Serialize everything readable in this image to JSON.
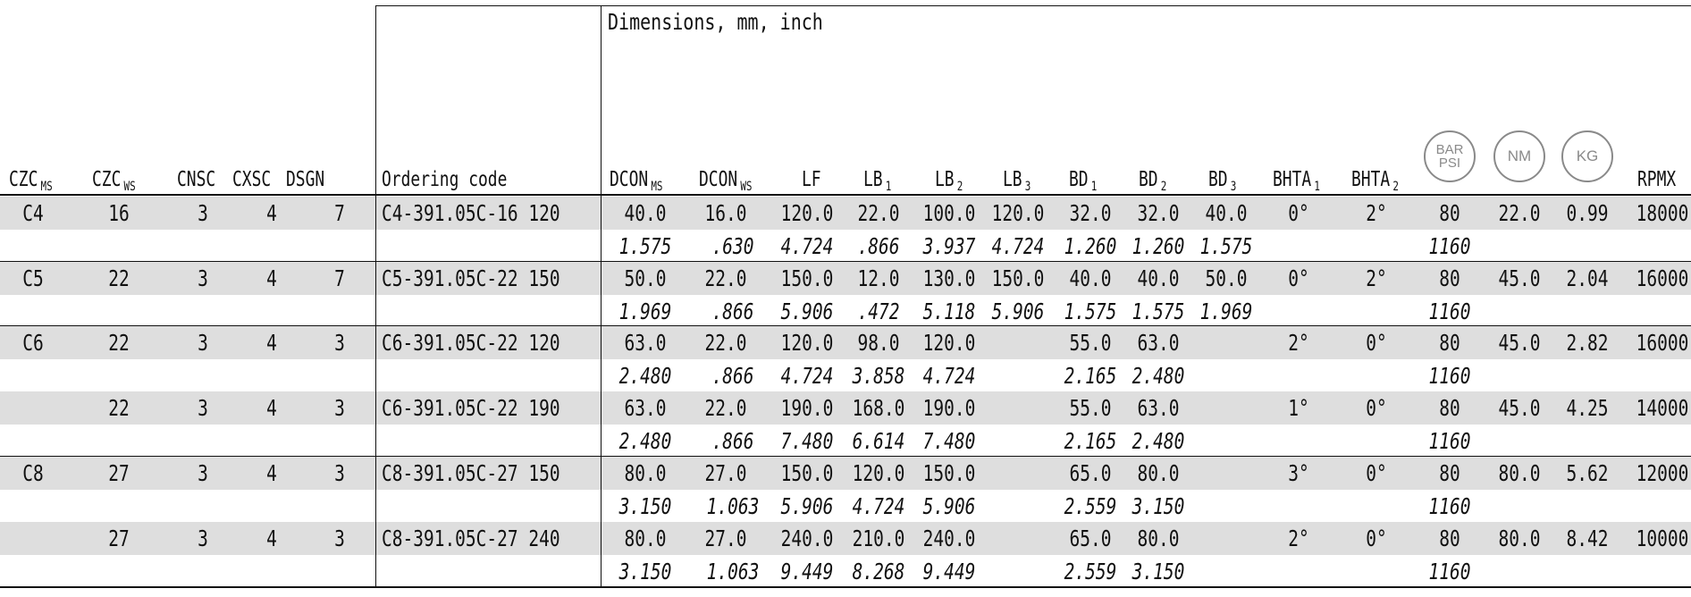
{
  "dimensions_title": "Dimensions, mm, inch",
  "headers": {
    "czc_ms": "CZC",
    "czc_ms_sub": "MS",
    "czc_ws": "CZC",
    "czc_ws_sub": "WS",
    "cnsc": "CNSC",
    "cxsc": "CXSC",
    "dsgn": "DSGN",
    "ordering_code": "Ordering code",
    "dcon_ms": "DCON",
    "dcon_ms_sub": "MS",
    "dcon_ws": "DCON",
    "dcon_ws_sub": "WS",
    "lf": "LF",
    "lb1": "LB",
    "lb1_sub": "1",
    "lb2": "LB",
    "lb2_sub": "2",
    "lb3": "LB",
    "lb3_sub": "3",
    "bd1": "BD",
    "bd1_sub": "1",
    "bd2": "BD",
    "bd2_sub": "2",
    "bd3": "BD",
    "bd3_sub": "3",
    "bhta1": "BHTA",
    "bhta1_sub": "1",
    "bhta2": "BHTA",
    "bhta2_sub": "2",
    "rpmx": "RPMX"
  },
  "badges": {
    "pressure_top": "BAR",
    "pressure_bottom": "PSI",
    "torque": "NM",
    "weight": "KG"
  },
  "rows": [
    {
      "czc_ms": "C4",
      "czc_ws": "16",
      "cnsc": "3",
      "cxsc": "4",
      "dsgn": "7",
      "code": "C4-391.05C-16 120",
      "dcon_ms": "40.0",
      "dcon_ws": "16.0",
      "lf": "120.0",
      "lb1": "22.0",
      "lb2": "100.0",
      "lb3": "120.0",
      "bd1": "32.0",
      "bd2": "32.0",
      "bd3": "40.0",
      "bhta1": "0°",
      "bhta2": "2°",
      "bar": "80",
      "nm": "22.0",
      "kg": "0.99",
      "rpmx": "18000",
      "in_dcon_ms": "1.575",
      "in_dcon_ws": ".630",
      "in_lf": "4.724",
      "in_lb1": ".866",
      "in_lb2": "3.937",
      "in_lb3": "4.724",
      "in_bd1": "1.260",
      "in_bd2": "1.260",
      "in_bd3": "1.575",
      "psi": "1160"
    },
    {
      "czc_ms": "C5",
      "czc_ws": "22",
      "cnsc": "3",
      "cxsc": "4",
      "dsgn": "7",
      "code": "C5-391.05C-22 150",
      "dcon_ms": "50.0",
      "dcon_ws": "22.0",
      "lf": "150.0",
      "lb1": "12.0",
      "lb2": "130.0",
      "lb3": "150.0",
      "bd1": "40.0",
      "bd2": "40.0",
      "bd3": "50.0",
      "bhta1": "0°",
      "bhta2": "2°",
      "bar": "80",
      "nm": "45.0",
      "kg": "2.04",
      "rpmx": "16000",
      "in_dcon_ms": "1.969",
      "in_dcon_ws": ".866",
      "in_lf": "5.906",
      "in_lb1": ".472",
      "in_lb2": "5.118",
      "in_lb3": "5.906",
      "in_bd1": "1.575",
      "in_bd2": "1.575",
      "in_bd3": "1.969",
      "psi": "1160"
    },
    {
      "czc_ms": "C6",
      "czc_ws": "22",
      "cnsc": "3",
      "cxsc": "4",
      "dsgn": "3",
      "code": "C6-391.05C-22 120",
      "dcon_ms": "63.0",
      "dcon_ws": "22.0",
      "lf": "120.0",
      "lb1": "98.0",
      "lb2": "120.0",
      "lb3": "",
      "bd1": "55.0",
      "bd2": "63.0",
      "bd3": "",
      "bhta1": "",
      "bhta2": "2°",
      "bhta3": "0°",
      "bar": "80",
      "nm": "45.0",
      "kg": "2.82",
      "rpmx": "16000",
      "in_dcon_ms": "2.480",
      "in_dcon_ws": ".866",
      "in_lf": "4.724",
      "in_lb1": "3.858",
      "in_lb2": "4.724",
      "in_lb3": "",
      "in_bd1": "2.165",
      "in_bd2": "2.480",
      "in_bd3": "",
      "psi": "1160"
    },
    {
      "czc_ms": "",
      "czc_ws": "22",
      "cnsc": "3",
      "cxsc": "4",
      "dsgn": "3",
      "code": "C6-391.05C-22 190",
      "dcon_ms": "63.0",
      "dcon_ws": "22.0",
      "lf": "190.0",
      "lb1": "168.0",
      "lb2": "190.0",
      "lb3": "",
      "bd1": "55.0",
      "bd2": "63.0",
      "bd3": "",
      "bhta1": "",
      "bhta2": "1°",
      "bhta3": "0°",
      "bar": "80",
      "nm": "45.0",
      "kg": "4.25",
      "rpmx": "14000",
      "in_dcon_ms": "2.480",
      "in_dcon_ws": ".866",
      "in_lf": "7.480",
      "in_lb1": "6.614",
      "in_lb2": "7.480",
      "in_lb3": "",
      "in_bd1": "2.165",
      "in_bd2": "2.480",
      "in_bd3": "",
      "psi": "1160"
    },
    {
      "czc_ms": "C8",
      "czc_ws": "27",
      "cnsc": "3",
      "cxsc": "4",
      "dsgn": "3",
      "code": "C8-391.05C-27 150",
      "dcon_ms": "80.0",
      "dcon_ws": "27.0",
      "lf": "150.0",
      "lb1": "120.0",
      "lb2": "150.0",
      "lb3": "",
      "bd1": "65.0",
      "bd2": "80.0",
      "bd3": "",
      "bhta1": "",
      "bhta2": "3°",
      "bhta3": "0°",
      "bar": "80",
      "nm": "80.0",
      "kg": "5.62",
      "rpmx": "12000",
      "in_dcon_ms": "3.150",
      "in_dcon_ws": "1.063",
      "in_lf": "5.906",
      "in_lb1": "4.724",
      "in_lb2": "5.906",
      "in_lb3": "",
      "in_bd1": "2.559",
      "in_bd2": "3.150",
      "in_bd3": "",
      "psi": "1160"
    },
    {
      "czc_ms": "",
      "czc_ws": "27",
      "cnsc": "3",
      "cxsc": "4",
      "dsgn": "3",
      "code": "C8-391.05C-27 240",
      "dcon_ms": "80.0",
      "dcon_ws": "27.0",
      "lf": "240.0",
      "lb1": "210.0",
      "lb2": "240.0",
      "lb3": "",
      "bd1": "65.0",
      "bd2": "80.0",
      "bd3": "",
      "bhta1": "",
      "bhta2": "2°",
      "bhta3": "0°",
      "bar": "80",
      "nm": "80.0",
      "kg": "8.42",
      "rpmx": "10000",
      "in_dcon_ms": "3.150",
      "in_dcon_ws": "1.063",
      "in_lf": "9.449",
      "in_lb1": "8.268",
      "in_lb2": "9.449",
      "in_lb3": "",
      "in_bd1": "2.559",
      "in_bd2": "3.150",
      "in_bd3": "",
      "psi": "1160"
    }
  ]
}
